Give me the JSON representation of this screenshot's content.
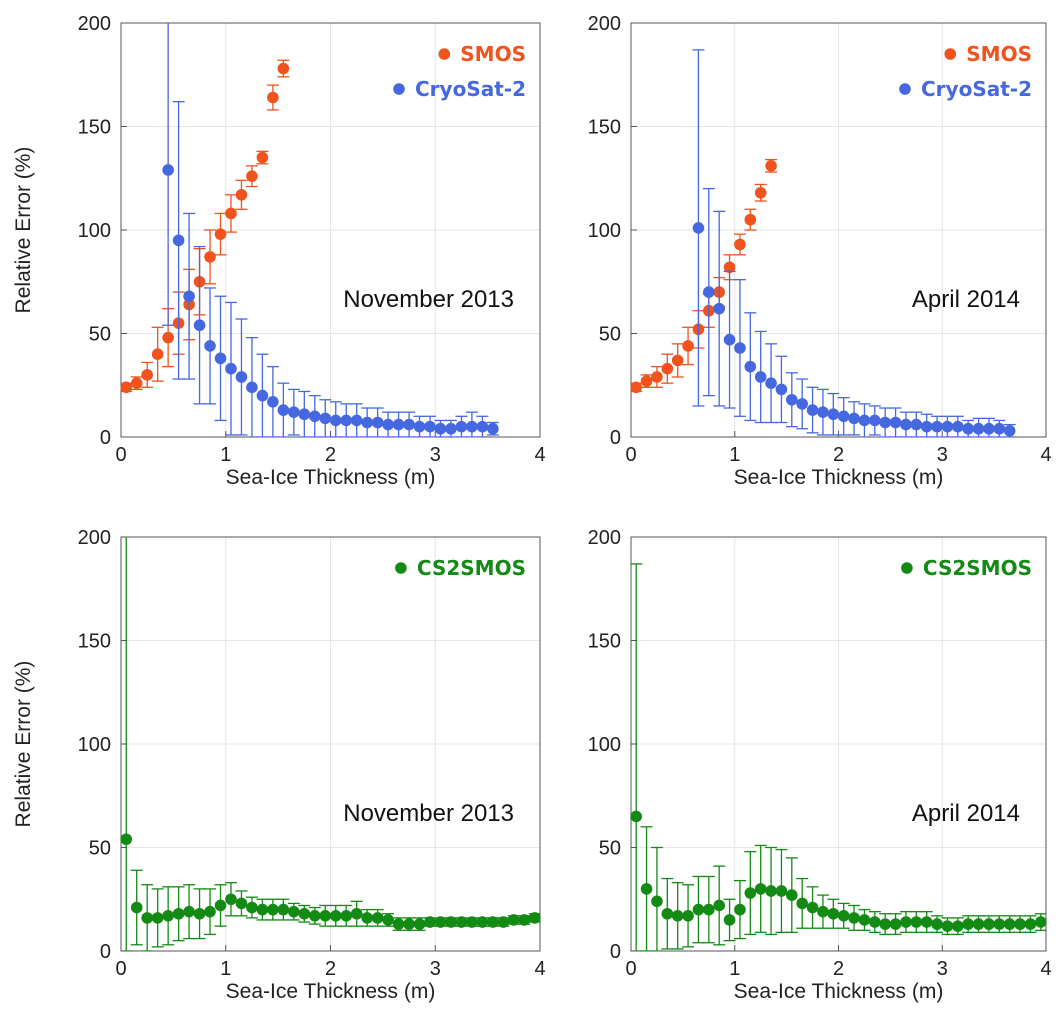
{
  "chart_data": [
    {
      "type": "scatter",
      "annotation": "November 2013",
      "xlabel": "Sea-Ice Thickness (m)",
      "ylabel": "Relative Error (%)",
      "xlim": [
        0,
        4
      ],
      "ylim": [
        0,
        200
      ],
      "xticks": [
        "0",
        "1",
        "2",
        "3",
        "4"
      ],
      "yticks": [
        "0",
        "50",
        "100",
        "150",
        "200"
      ],
      "grid": true,
      "legend_position": "top-right",
      "series": [
        {
          "name": "SMOS",
          "color": "#f2521c",
          "x": [
            0.05,
            0.15,
            0.25,
            0.35,
            0.45,
            0.55,
            0.65,
            0.75,
            0.85,
            0.95,
            1.05,
            1.15,
            1.25,
            1.35,
            1.45,
            1.55
          ],
          "y": [
            24,
            26,
            30,
            40,
            48,
            55,
            64,
            75,
            87,
            98,
            108,
            117,
            126,
            135,
            164,
            178
          ],
          "err": [
            2,
            3,
            6,
            13,
            14,
            15,
            17,
            16,
            13,
            10,
            9,
            7,
            5,
            3,
            6,
            4
          ]
        },
        {
          "name": "CryoSat-2",
          "color": "#4568e0",
          "x": [
            0.45,
            0.55,
            0.65,
            0.75,
            0.85,
            0.95,
            1.05,
            1.15,
            1.25,
            1.35,
            1.45,
            1.55,
            1.65,
            1.75,
            1.85,
            1.95,
            2.05,
            2.15,
            2.25,
            2.35,
            2.45,
            2.55,
            2.65,
            2.75,
            2.85,
            2.95,
            3.05,
            3.15,
            3.25,
            3.35,
            3.45,
            3.55
          ],
          "y": [
            129,
            95,
            68,
            54,
            44,
            38,
            33,
            29,
            24,
            20,
            17,
            13,
            12,
            11,
            10,
            9,
            8,
            8,
            8,
            7,
            7,
            6,
            6,
            6,
            5,
            5,
            4,
            4,
            5,
            5,
            5,
            4
          ],
          "err": [
            75,
            67,
            40,
            38,
            28,
            30,
            32,
            28,
            24,
            20,
            17,
            13,
            11,
            11,
            10,
            9,
            9,
            8,
            8,
            7,
            7,
            6,
            6,
            6,
            5,
            5,
            4,
            4,
            5,
            7,
            5,
            3
          ]
        }
      ]
    },
    {
      "type": "scatter",
      "annotation": "April 2014",
      "xlabel": "Sea-Ice Thickness (m)",
      "ylabel": "",
      "xlim": [
        0,
        4
      ],
      "ylim": [
        0,
        200
      ],
      "xticks": [
        "0",
        "1",
        "2",
        "3",
        "4"
      ],
      "yticks": [
        "0",
        "50",
        "100",
        "150",
        "200"
      ],
      "grid": true,
      "legend_position": "top-right",
      "series": [
        {
          "name": "SMOS",
          "color": "#f2521c",
          "x": [
            0.05,
            0.15,
            0.25,
            0.35,
            0.45,
            0.55,
            0.65,
            0.75,
            0.85,
            0.95,
            1.05,
            1.15,
            1.25,
            1.35
          ],
          "y": [
            24,
            27,
            29,
            33,
            37,
            44,
            52,
            61,
            70,
            82,
            93,
            105,
            118,
            131
          ],
          "err": [
            2,
            3,
            5,
            7,
            8,
            9,
            9,
            8,
            7,
            6,
            5,
            5,
            4,
            3
          ]
        },
        {
          "name": "CryoSat-2",
          "color": "#4568e0",
          "x": [
            0.65,
            0.75,
            0.85,
            0.95,
            1.05,
            1.15,
            1.25,
            1.35,
            1.45,
            1.55,
            1.65,
            1.75,
            1.85,
            1.95,
            2.05,
            2.15,
            2.25,
            2.35,
            2.45,
            2.55,
            2.65,
            2.75,
            2.85,
            2.95,
            3.05,
            3.15,
            3.25,
            3.35,
            3.45,
            3.55,
            3.65
          ],
          "y": [
            101,
            70,
            62,
            47,
            43,
            34,
            29,
            26,
            23,
            18,
            16,
            13,
            12,
            11,
            10,
            9,
            8,
            8,
            7,
            7,
            6,
            6,
            5,
            5,
            5,
            5,
            4,
            4,
            4,
            4,
            3
          ],
          "err": [
            86,
            50,
            47,
            33,
            33,
            26,
            22,
            19,
            16,
            13,
            12,
            11,
            11,
            10,
            9,
            8,
            8,
            7,
            7,
            7,
            6,
            6,
            6,
            5,
            5,
            5,
            4,
            5,
            5,
            4,
            3
          ]
        }
      ]
    },
    {
      "type": "scatter",
      "annotation": "November 2013",
      "xlabel": "Sea-Ice Thickness (m)",
      "ylabel": "Relative Error (%)",
      "xlim": [
        0,
        4
      ],
      "ylim": [
        0,
        200
      ],
      "xticks": [
        "0",
        "1",
        "2",
        "3",
        "4"
      ],
      "yticks": [
        "0",
        "50",
        "100",
        "150",
        "200"
      ],
      "grid": true,
      "legend_position": "top-right",
      "series": [
        {
          "name": "CS2SMOS",
          "color": "#138a13",
          "x": [
            0.05,
            0.15,
            0.25,
            0.35,
            0.45,
            0.55,
            0.65,
            0.75,
            0.85,
            0.95,
            1.05,
            1.15,
            1.25,
            1.35,
            1.45,
            1.55,
            1.65,
            1.75,
            1.85,
            1.95,
            2.05,
            2.15,
            2.25,
            2.35,
            2.45,
            2.55,
            2.65,
            2.75,
            2.85,
            2.95,
            3.05,
            3.15,
            3.25,
            3.35,
            3.45,
            3.55,
            3.65,
            3.75,
            3.85,
            3.95
          ],
          "y": [
            54,
            21,
            16,
            16,
            17,
            18,
            19,
            18,
            19,
            22,
            25,
            23,
            21,
            20,
            20,
            20,
            19,
            18,
            17,
            17,
            17,
            17,
            18,
            16,
            16,
            15,
            13,
            13,
            13,
            14,
            14,
            14,
            14,
            14,
            14,
            14,
            14,
            15,
            15,
            16
          ],
          "err": [
            150,
            18,
            16,
            14,
            14,
            13,
            13,
            12,
            11,
            10,
            8,
            6,
            5,
            5,
            5,
            5,
            4,
            4,
            4,
            5,
            5,
            5,
            6,
            4,
            4,
            3,
            3,
            3,
            3,
            2,
            2,
            2,
            2,
            2,
            2,
            2,
            2,
            2,
            2,
            2
          ]
        }
      ]
    },
    {
      "type": "scatter",
      "annotation": "April 2014",
      "xlabel": "Sea-Ice Thickness (m)",
      "ylabel": "",
      "xlim": [
        0,
        4
      ],
      "ylim": [
        0,
        200
      ],
      "xticks": [
        "0",
        "1",
        "2",
        "3",
        "4"
      ],
      "yticks": [
        "0",
        "50",
        "100",
        "150",
        "200"
      ],
      "grid": true,
      "legend_position": "top-right",
      "series": [
        {
          "name": "CS2SMOS",
          "color": "#138a13",
          "x": [
            0.05,
            0.15,
            0.25,
            0.35,
            0.45,
            0.55,
            0.65,
            0.75,
            0.85,
            0.95,
            1.05,
            1.15,
            1.25,
            1.35,
            1.45,
            1.55,
            1.65,
            1.75,
            1.85,
            1.95,
            2.05,
            2.15,
            2.25,
            2.35,
            2.45,
            2.55,
            2.65,
            2.75,
            2.85,
            2.95,
            3.05,
            3.15,
            3.25,
            3.35,
            3.45,
            3.55,
            3.65,
            3.75,
            3.85,
            3.95
          ],
          "y": [
            65,
            30,
            24,
            18,
            17,
            17,
            20,
            20,
            22,
            15,
            20,
            28,
            30,
            29,
            29,
            27,
            23,
            21,
            19,
            18,
            17,
            16,
            15,
            14,
            13,
            13,
            14,
            14,
            14,
            13,
            12,
            12,
            13,
            13,
            13,
            13,
            13,
            13,
            13,
            14
          ],
          "err": [
            122,
            30,
            26,
            17,
            16,
            15,
            16,
            16,
            19,
            10,
            14,
            20,
            21,
            21,
            20,
            18,
            12,
            10,
            8,
            7,
            6,
            6,
            5,
            5,
            5,
            5,
            5,
            5,
            5,
            4,
            4,
            4,
            4,
            4,
            4,
            4,
            4,
            4,
            4,
            4
          ]
        }
      ]
    }
  ]
}
